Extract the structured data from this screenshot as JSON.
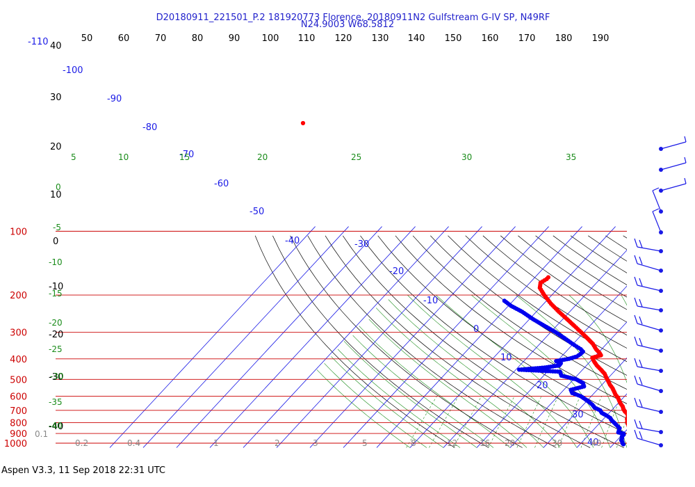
{
  "header": {
    "title_line1": "D20180911_221501_P.2 181920773 Florence, 20180911N2 Gulfstream G-IV SP, N49RF",
    "title_line2": "N24.9003 W68.5812"
  },
  "footer": {
    "text": "Aspen V3.3, 11 Sep 2018  22:31 UTC"
  },
  "colors": {
    "title": "#2222cc",
    "isobar": "#cc0000",
    "isotherm": "#1a1ae6",
    "dry_adiabat": "#000000",
    "moist_adiabat": "#1a8c1a",
    "mixing_ratio": "#1a8c1a",
    "temperature_trace": "#ff0000",
    "dewpoint_trace": "#0000ee",
    "wind_barb": "#1a1ae6",
    "mixing_label": "#888888"
  },
  "chart_data": {
    "type": "scatter",
    "title": "",
    "pressure_levels": [
      100,
      200,
      300,
      400,
      500,
      600,
      700,
      800,
      900,
      1000
    ],
    "pressure_labels": [
      "100",
      "200",
      "300",
      "400",
      "500",
      "600",
      "700",
      "800",
      "900",
      "1000"
    ],
    "top_axis_ticks": [
      "50",
      "60",
      "70",
      "80",
      "90",
      "100",
      "110",
      "120",
      "130",
      "140",
      "150",
      "160",
      "170",
      "180",
      "190"
    ],
    "isotherm_labels": [
      "-110",
      "-100",
      "-90",
      "-80",
      "-70",
      "-60",
      "-50",
      "-40",
      "-30",
      "-20",
      "-10",
      "0",
      "10",
      "20",
      "30",
      "40"
    ],
    "dry_adiabat_labels": [
      "40",
      "30",
      "20",
      "10",
      "0",
      "-10",
      "-20",
      "-30",
      "-40"
    ],
    "moist_adiabat_labels": [
      "0",
      "-5",
      "-10",
      "-15",
      "-20",
      "-25",
      "-30",
      "-35",
      "-40",
      "5",
      "10",
      "15",
      "20",
      "25",
      "30",
      "35"
    ],
    "mixing_ratio_labels": [
      "0.1",
      "0.2",
      "0.4",
      "1",
      "2",
      "3",
      "5",
      "8",
      "12",
      "16",
      "20",
      "30",
      "40"
    ],
    "series": [
      {
        "name": "Temperature",
        "points": [
          [
            1012,
            28.5
          ],
          [
            1000,
            27.6
          ],
          [
            985,
            26.4
          ],
          [
            970,
            25.0
          ],
          [
            950,
            24.2
          ],
          [
            930,
            23.0
          ],
          [
            910,
            22.3
          ],
          [
            890,
            21.6
          ],
          [
            870,
            20.8
          ],
          [
            850,
            20.3
          ],
          [
            830,
            19.5
          ],
          [
            810,
            18.6
          ],
          [
            790,
            17.8
          ],
          [
            770,
            17.1
          ],
          [
            750,
            16.7
          ],
          [
            730,
            15.9
          ],
          [
            710,
            14.4
          ],
          [
            690,
            13.2
          ],
          [
            670,
            12.2
          ],
          [
            650,
            10.8
          ],
          [
            630,
            9.6
          ],
          [
            610,
            8.4
          ],
          [
            590,
            6.8
          ],
          [
            570,
            5.5
          ],
          [
            550,
            4.1
          ],
          [
            530,
            2.4
          ],
          [
            510,
            0.9
          ],
          [
            490,
            -0.7
          ],
          [
            470,
            -2.3
          ],
          [
            450,
            -4.5
          ],
          [
            430,
            -6.9
          ],
          [
            410,
            -9.0
          ],
          [
            395,
            -10.4
          ],
          [
            385,
            -8.5
          ],
          [
            375,
            -9.6
          ],
          [
            360,
            -11.7
          ],
          [
            340,
            -14.1
          ],
          [
            320,
            -17.3
          ],
          [
            300,
            -20.8
          ],
          [
            280,
            -24.6
          ],
          [
            260,
            -28.7
          ],
          [
            240,
            -33.2
          ],
          [
            220,
            -37.8
          ],
          [
            200,
            -42.3
          ],
          [
            185,
            -45.6
          ],
          [
            175,
            -46.8
          ],
          [
            168,
            -46.0
          ],
          [
            165,
            -46.0
          ]
        ]
      },
      {
        "name": "Dewpoint",
        "points": [
          [
            1012,
            23.0
          ],
          [
            1000,
            22.4
          ],
          [
            985,
            22.0
          ],
          [
            970,
            21.3
          ],
          [
            950,
            21.0
          ],
          [
            930,
            20.4
          ],
          [
            910,
            20.4
          ],
          [
            900,
            20.0
          ],
          [
            890,
            18.2
          ],
          [
            870,
            17.8
          ],
          [
            850,
            17.4
          ],
          [
            820,
            15.5
          ],
          [
            800,
            14.2
          ],
          [
            780,
            12.8
          ],
          [
            760,
            11.7
          ],
          [
            740,
            9.9
          ],
          [
            720,
            7.8
          ],
          [
            700,
            6.6
          ],
          [
            680,
            4.2
          ],
          [
            660,
            2.8
          ],
          [
            640,
            1.0
          ],
          [
            620,
            -1.0
          ],
          [
            600,
            -3.2
          ],
          [
            580,
            -6.6
          ],
          [
            560,
            -7.9
          ],
          [
            540,
            -4.9
          ],
          [
            520,
            -6.2
          ],
          [
            500,
            -9.2
          ],
          [
            480,
            -14.7
          ],
          [
            460,
            -16.2
          ],
          [
            450,
            -29.0
          ],
          [
            440,
            -22.0
          ],
          [
            430,
            -18.2
          ],
          [
            420,
            -18.3
          ],
          [
            410,
            -20.3
          ],
          [
            400,
            -17.1
          ],
          [
            390,
            -15.4
          ],
          [
            380,
            -15.0
          ],
          [
            370,
            -14.9
          ],
          [
            360,
            -16.3
          ],
          [
            340,
            -20.2
          ],
          [
            320,
            -24.1
          ],
          [
            300,
            -28.4
          ],
          [
            280,
            -33.5
          ],
          [
            260,
            -38.9
          ],
          [
            240,
            -44.2
          ],
          [
            225,
            -49.2
          ],
          [
            213,
            -52.6
          ]
        ]
      }
    ]
  }
}
